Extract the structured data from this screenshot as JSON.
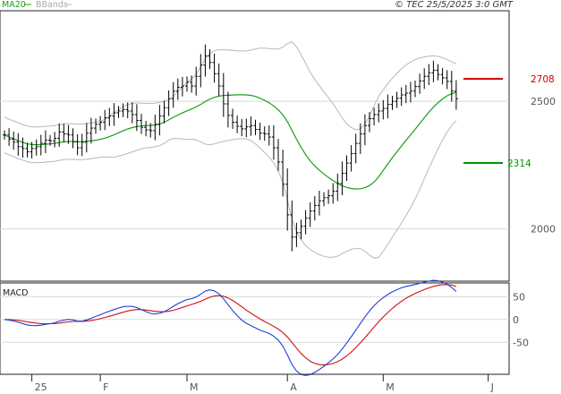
{
  "header": {
    "legend_ma": "MA20",
    "legend_bb": "BBands",
    "stamp": "© TEC 25/5/2025 3:0 GMT"
  },
  "macd_panel": {
    "label": "MACD"
  },
  "levels": {
    "resistance": {
      "label": "2708",
      "value": 2708,
      "color": "#cc0000"
    },
    "support": {
      "label": "2314",
      "value": 2314,
      "color": "#009900"
    }
  },
  "colors": {
    "price": "#000000",
    "ma20": "#1a9e1a",
    "bbands": "#b8b8b8",
    "grid": "#d9d9d9",
    "macd": "#1f3fd6",
    "signal": "#cc1111",
    "axis": "#555555"
  },
  "chart_data": [
    {
      "type": "line",
      "subtype": "ohlc-bars-with-ma20-and-bollinger-bands",
      "title": "",
      "price_axis": {
        "ticks": [
          2000,
          2500
        ],
        "tick_labels": [
          "2000",
          "2500"
        ],
        "range": [
          1795,
          2855
        ],
        "grid": true
      },
      "x_axis": {
        "month_labels": [
          "25",
          "F",
          "M",
          "A",
          "M",
          "J"
        ],
        "month_label_index": [
          6,
          21,
          40,
          62,
          83,
          106
        ]
      },
      "series": [
        {
          "kind": "ohlc_bars",
          "values": [
            2368,
            2352,
            2340,
            2322,
            2315,
            2302,
            2315,
            2322,
            2335,
            2348,
            2345,
            2355,
            2380,
            2372,
            2368,
            2342,
            2318,
            2340,
            2375,
            2395,
            2410,
            2418,
            2435,
            2442,
            2455,
            2462,
            2468,
            2462,
            2448,
            2425,
            2398,
            2388,
            2385,
            2410,
            2442,
            2475,
            2510,
            2540,
            2555,
            2560,
            2575,
            2560,
            2598,
            2642,
            2678,
            2652,
            2608,
            2560,
            2490,
            2445,
            2418,
            2402,
            2392,
            2400,
            2405,
            2390,
            2375,
            2372,
            2360,
            2318,
            2262,
            2175,
            2055,
            1968,
            1985,
            2010,
            2042,
            2070,
            2092,
            2110,
            2122,
            2130,
            2148,
            2178,
            2218,
            2258,
            2295,
            2335,
            2372,
            2405,
            2432,
            2448,
            2462,
            2472,
            2488,
            2500,
            2512,
            2525,
            2532,
            2540,
            2558,
            2580,
            2598,
            2612,
            2622,
            2605,
            2592,
            2578,
            2540,
            2510
          ]
        },
        {
          "kind": "ma20",
          "name": "MA20"
        },
        {
          "kind": "bbands",
          "name": "BBands"
        }
      ],
      "levels": [
        2708,
        2314
      ]
    },
    {
      "type": "line",
      "title": "MACD",
      "y_axis": {
        "ticks": [
          50,
          0,
          -50
        ],
        "tick_labels": [
          "50",
          "0",
          "-50"
        ],
        "range": [
          -120,
          80
        ]
      },
      "series": [
        {
          "name": "MACD"
        },
        {
          "name": "Signal"
        }
      ]
    }
  ]
}
